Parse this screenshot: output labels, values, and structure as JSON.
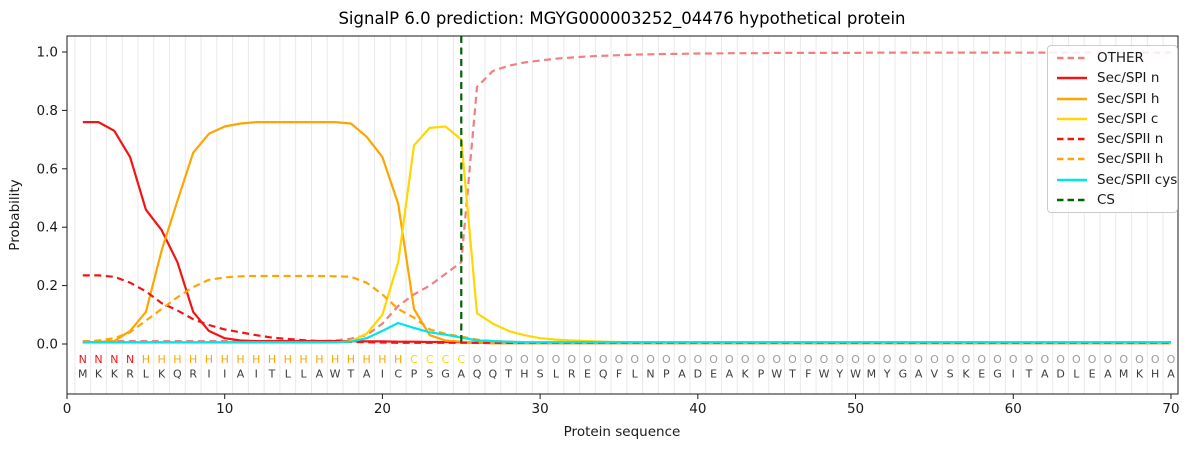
{
  "chart_data": {
    "type": "line",
    "title": "SignalP 6.0 prediction: MGYG000003252_04476 hypothetical protein",
    "xlabel": "Protein sequence",
    "ylabel": "Probability",
    "xticks": [
      0,
      10,
      20,
      30,
      40,
      50,
      60,
      70
    ],
    "yticks": [
      "0.0",
      "0.2",
      "0.4",
      "0.6",
      "0.8",
      "1.0"
    ],
    "xlim": [
      0,
      70.5
    ],
    "ylim": [
      0,
      1.0
    ],
    "grid": "vertical gridlines at each residue position",
    "legend_position": "upper right",
    "x_start": 1,
    "sequence": "MKKRLKQRIIAITLLAWTAICPSGAQQTHSLREQFLNPADEAKPWTFWYWMYGAVSKEGITADLEAMKHA",
    "region_labels": "NNNNHHHHHHHHHHHHHHHHHCCCCOOOOOOOOOOOOOOOOOOOOOOOOOOOOOOOOOOOOOOOOOOOOO",
    "region_colors": {
      "N": "#f11515",
      "H": "#ffa500",
      "C": "#ffd700",
      "O": "#9d9d9d"
    },
    "residue_color": "#3c3c3c",
    "series": [
      {
        "name": "OTHER",
        "color": "#f08080",
        "dash": true,
        "values": [
          0.01,
          0.01,
          0.01,
          0.01,
          0.01,
          0.01,
          0.01,
          0.01,
          0.01,
          0.01,
          0.01,
          0.01,
          0.01,
          0.01,
          0.01,
          0.01,
          0.012,
          0.018,
          0.03,
          0.07,
          0.13,
          0.17,
          0.2,
          0.24,
          0.28,
          0.88,
          0.935,
          0.953,
          0.964,
          0.971,
          0.977,
          0.981,
          0.985,
          0.987,
          0.989,
          0.991,
          0.992,
          0.993,
          0.994,
          0.995,
          0.995,
          0.996,
          0.996,
          0.996,
          0.997,
          0.997,
          0.997,
          0.997,
          0.997,
          0.997,
          0.998,
          0.998,
          0.998,
          0.998,
          0.998,
          0.998,
          0.998,
          0.998,
          0.998,
          0.998,
          0.998,
          0.998,
          0.998,
          0.998,
          0.998,
          0.998,
          0.998,
          0.998,
          0.998,
          0.998
        ]
      },
      {
        "name": "Sec/SPI n",
        "color": "#f11515",
        "dash": false,
        "values": [
          0.76,
          0.76,
          0.73,
          0.64,
          0.46,
          0.39,
          0.28,
          0.11,
          0.045,
          0.02,
          0.012,
          0.01,
          0.01,
          0.01,
          0.01,
          0.01,
          0.01,
          0.01,
          0.009,
          0.009,
          0.008,
          0.008,
          0.007,
          0.007,
          0.006,
          0.004,
          0.003,
          0.003,
          0.003,
          0.003,
          0.003,
          0.003,
          0.003,
          0.003,
          0.003,
          0.003,
          0.003,
          0.003,
          0.003,
          0.003,
          0.003,
          0.003,
          0.003,
          0.003,
          0.003,
          0.003,
          0.003,
          0.003,
          0.003,
          0.003,
          0.003,
          0.003,
          0.003,
          0.003,
          0.003,
          0.003,
          0.003,
          0.003,
          0.003,
          0.003,
          0.003,
          0.003,
          0.003,
          0.003,
          0.003,
          0.003,
          0.003,
          0.003,
          0.003,
          0.003
        ]
      },
      {
        "name": "Sec/SPI h",
        "color": "#ffa500",
        "dash": false,
        "values": [
          0.005,
          0.007,
          0.01,
          0.045,
          0.11,
          0.32,
          0.49,
          0.655,
          0.72,
          0.745,
          0.755,
          0.76,
          0.76,
          0.76,
          0.76,
          0.76,
          0.76,
          0.755,
          0.71,
          0.64,
          0.48,
          0.12,
          0.03,
          0.012,
          0.008,
          0.005,
          0.003,
          0.003,
          0.003,
          0.003,
          0.003,
          0.003,
          0.003,
          0.003,
          0.003,
          0.003,
          0.003,
          0.003,
          0.003,
          0.003,
          0.003,
          0.003,
          0.003,
          0.003,
          0.003,
          0.003,
          0.003,
          0.003,
          0.003,
          0.003,
          0.003,
          0.003,
          0.003,
          0.003,
          0.003,
          0.003,
          0.003,
          0.003,
          0.003,
          0.003,
          0.003,
          0.003,
          0.003,
          0.003,
          0.003,
          0.003,
          0.003,
          0.003,
          0.003,
          0.003
        ]
      },
      {
        "name": "Sec/SPI c",
        "color": "#ffd700",
        "dash": false,
        "values": [
          0.004,
          0.004,
          0.004,
          0.004,
          0.004,
          0.004,
          0.004,
          0.004,
          0.004,
          0.004,
          0.004,
          0.004,
          0.004,
          0.004,
          0.004,
          0.004,
          0.005,
          0.01,
          0.035,
          0.1,
          0.28,
          0.68,
          0.74,
          0.745,
          0.7,
          0.105,
          0.07,
          0.045,
          0.03,
          0.02,
          0.015,
          0.012,
          0.01,
          0.008,
          0.007,
          0.006,
          0.005,
          0.005,
          0.005,
          0.005,
          0.005,
          0.005,
          0.005,
          0.005,
          0.005,
          0.005,
          0.005,
          0.005,
          0.005,
          0.005,
          0.005,
          0.005,
          0.005,
          0.005,
          0.005,
          0.005,
          0.005,
          0.005,
          0.005,
          0.005,
          0.005,
          0.005,
          0.005,
          0.005,
          0.005,
          0.005,
          0.005,
          0.005,
          0.005,
          0.005
        ]
      },
      {
        "name": "Sec/SPII n",
        "color": "#f11515",
        "dash": true,
        "values": [
          0.235,
          0.235,
          0.23,
          0.21,
          0.18,
          0.14,
          0.115,
          0.085,
          0.065,
          0.05,
          0.04,
          0.03,
          0.022,
          0.017,
          0.013,
          0.01,
          0.008,
          0.007,
          0.006,
          0.005,
          0.004,
          0.004,
          0.004,
          0.004,
          0.004,
          0.004,
          0.004,
          0.004,
          0.004,
          0.004,
          0.004,
          0.004,
          0.004,
          0.004,
          0.004,
          0.004,
          0.004,
          0.004,
          0.004,
          0.004,
          0.004,
          0.004,
          0.004,
          0.004,
          0.004,
          0.004,
          0.004,
          0.004,
          0.004,
          0.004,
          0.004,
          0.004,
          0.004,
          0.004,
          0.004,
          0.004,
          0.004,
          0.004,
          0.004,
          0.004,
          0.004,
          0.004,
          0.004,
          0.004,
          0.004,
          0.004,
          0.004,
          0.004,
          0.004,
          0.004
        ]
      },
      {
        "name": "Sec/SPII h",
        "color": "#ffa500",
        "dash": true,
        "values": [
          0.008,
          0.012,
          0.02,
          0.04,
          0.08,
          0.12,
          0.16,
          0.195,
          0.22,
          0.228,
          0.232,
          0.233,
          0.233,
          0.233,
          0.233,
          0.233,
          0.232,
          0.23,
          0.21,
          0.17,
          0.12,
          0.09,
          0.05,
          0.035,
          0.025,
          0.015,
          0.01,
          0.008,
          0.006,
          0.006,
          0.006,
          0.006,
          0.006,
          0.006,
          0.006,
          0.006,
          0.006,
          0.006,
          0.006,
          0.006,
          0.006,
          0.006,
          0.006,
          0.006,
          0.006,
          0.006,
          0.006,
          0.006,
          0.006,
          0.006,
          0.006,
          0.006,
          0.006,
          0.006,
          0.006,
          0.006,
          0.006,
          0.006,
          0.006,
          0.006,
          0.006,
          0.006,
          0.006,
          0.006,
          0.006,
          0.006,
          0.006,
          0.006,
          0.006,
          0.006
        ]
      },
      {
        "name": "Sec/SPII cys",
        "color": "#00e5e5",
        "dash": false,
        "values": [
          0.006,
          0.006,
          0.006,
          0.006,
          0.006,
          0.006,
          0.006,
          0.006,
          0.006,
          0.006,
          0.006,
          0.006,
          0.006,
          0.006,
          0.006,
          0.006,
          0.006,
          0.008,
          0.02,
          0.045,
          0.072,
          0.055,
          0.04,
          0.032,
          0.022,
          0.012,
          0.01,
          0.008,
          0.006,
          0.006,
          0.006,
          0.006,
          0.006,
          0.006,
          0.006,
          0.006,
          0.006,
          0.006,
          0.006,
          0.006,
          0.006,
          0.006,
          0.006,
          0.006,
          0.006,
          0.006,
          0.006,
          0.006,
          0.006,
          0.006,
          0.006,
          0.006,
          0.006,
          0.006,
          0.006,
          0.006,
          0.006,
          0.006,
          0.006,
          0.006,
          0.006,
          0.006,
          0.006,
          0.006,
          0.006,
          0.006,
          0.006,
          0.006,
          0.006,
          0.006
        ]
      }
    ],
    "cs_line": {
      "name": "CS",
      "position": 25,
      "color": "#006400",
      "dash": true
    }
  }
}
